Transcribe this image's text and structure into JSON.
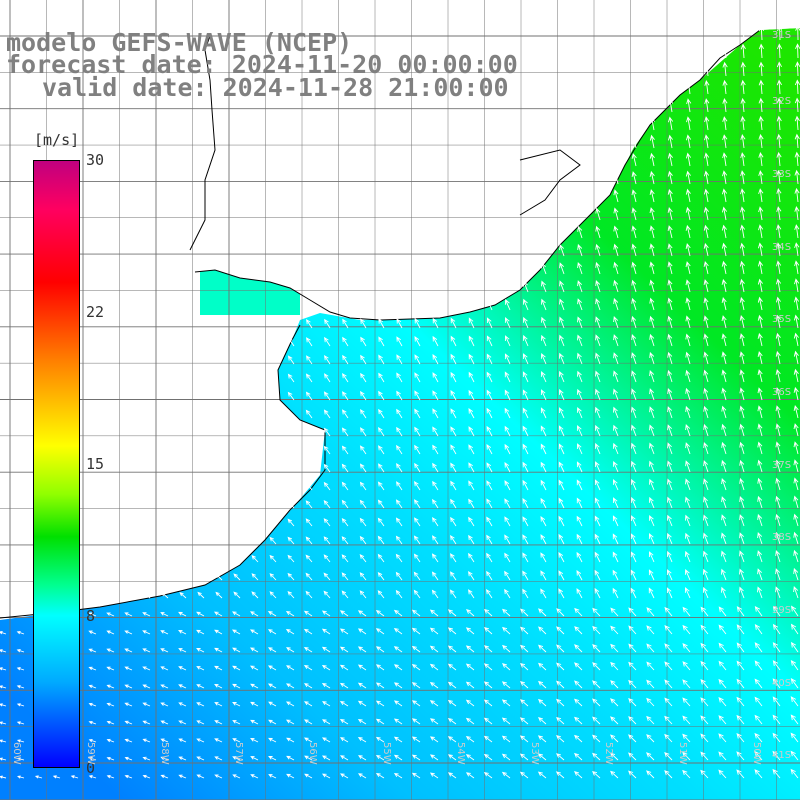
{
  "title": {
    "line1": "modelo GEFS-WAVE (NCEP)",
    "line2": "forecast date: 2024-11-20 00:00:00",
    "line3": "valid date: 2024-11-28 21:00:00"
  },
  "colorbar": {
    "units": "[m/s]",
    "ticks": [
      "30",
      "22",
      "15",
      "8",
      "0"
    ],
    "min": 0,
    "max": 30
  },
  "lat_labels": [
    "31S",
    "32S",
    "33S",
    "34S",
    "35S",
    "36S",
    "37S",
    "38S",
    "39S",
    "40S",
    "41S"
  ],
  "lon_labels": [
    "60W",
    "59W",
    "58W",
    "57W",
    "56W",
    "55W",
    "54W",
    "53W",
    "52W",
    "51W",
    "50W"
  ],
  "colors": {
    "land": "#ffffff",
    "grid": "#707070",
    "coast": "#000000",
    "arrows": "#ffffff",
    "title": "#808080"
  }
}
